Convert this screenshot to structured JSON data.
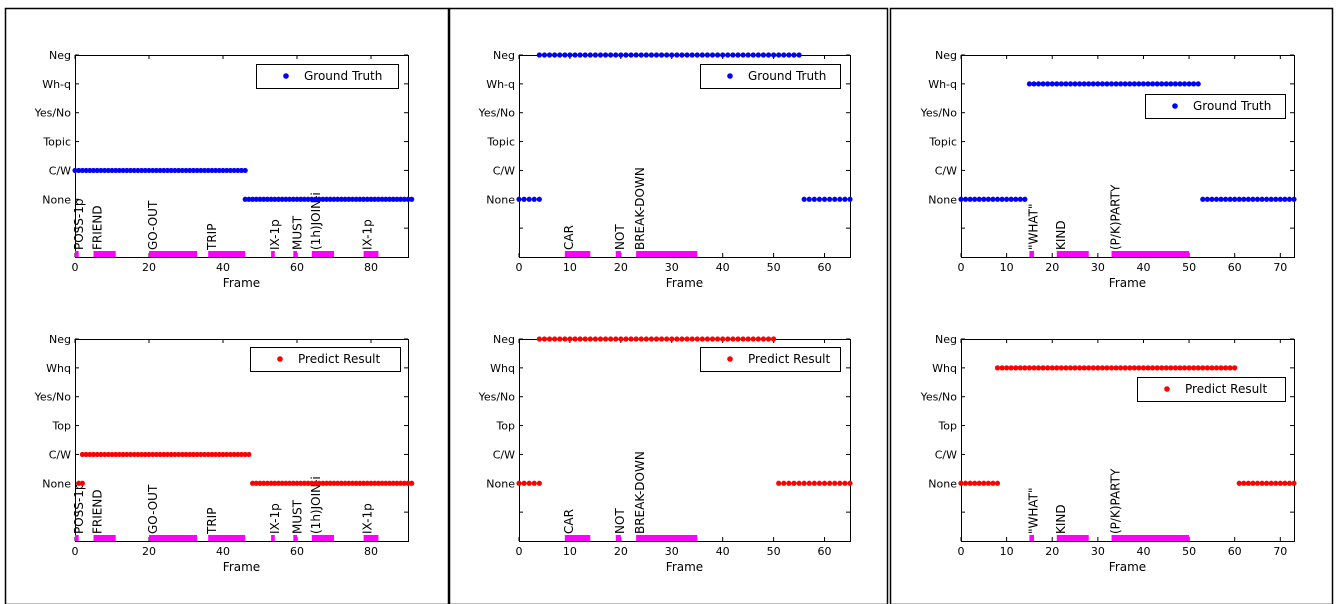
{
  "colors": {
    "gt": "#0000ff",
    "pred": "#ff0000",
    "gloss": "#ff00ff",
    "axis": "#000000"
  },
  "chart_data": [
    {
      "type": "scatter",
      "xlabel": "Frame",
      "xlim": [
        0,
        90
      ],
      "xticks": [
        0,
        20,
        40,
        60,
        80
      ],
      "categories": [
        "Neg",
        "Wh-q",
        "Yes/No",
        "Topic",
        "C/W",
        "None"
      ],
      "legend": "Ground Truth",
      "legend_pos": "top-right",
      "series": [
        {
          "name": "Ground Truth",
          "marker": "dot",
          "segments": [
            {
              "category": "C/W",
              "x": [
                0,
                46
              ]
            },
            {
              "category": "None",
              "x": [
                46,
                91
              ]
            }
          ]
        }
      ],
      "glosses": [
        {
          "label": "POSS-1p",
          "x": [
            0,
            1
          ]
        },
        {
          "label": "FRIEND",
          "x": [
            5,
            11
          ]
        },
        {
          "label": "GO-OUT",
          "x": [
            20,
            33
          ]
        },
        {
          "label": "TRIP",
          "x": [
            36,
            46
          ]
        },
        {
          "label": "IX-1p",
          "x": [
            53,
            54
          ]
        },
        {
          "label": "MUST",
          "x": [
            59,
            60
          ]
        },
        {
          "label": "(1h)JOIN-i",
          "x": [
            64,
            70
          ]
        },
        {
          "label": "IX-1p",
          "x": [
            78,
            82
          ]
        }
      ]
    },
    {
      "type": "scatter",
      "xlabel": "Frame",
      "xlim": [
        0,
        65
      ],
      "xticks": [
        0,
        10,
        20,
        30,
        40,
        50,
        60
      ],
      "categories": [
        "Neg",
        "Wh-q",
        "Yes/No",
        "Topic",
        "C/W",
        "None"
      ],
      "legend": "Ground Truth",
      "legend_pos": "top-right",
      "series": [
        {
          "name": "Ground Truth",
          "marker": "dot",
          "segments": [
            {
              "category": "None",
              "x": [
                0,
                4
              ]
            },
            {
              "category": "Neg",
              "x": [
                4,
                55
              ]
            },
            {
              "category": "None",
              "x": [
                56,
                65
              ]
            }
          ]
        }
      ],
      "glosses": [
        {
          "label": "CAR",
          "x": [
            9,
            14
          ]
        },
        {
          "label": "NOT",
          "x": [
            19,
            20
          ]
        },
        {
          "label": "BREAK-DOWN",
          "x": [
            23,
            35
          ]
        }
      ]
    },
    {
      "type": "scatter",
      "xlabel": "Frame",
      "xlim": [
        0,
        73
      ],
      "xticks": [
        0,
        10,
        20,
        30,
        40,
        50,
        60,
        70
      ],
      "categories": [
        "Neg",
        "Wh-q",
        "Yes/No",
        "Topic",
        "C/W",
        "None"
      ],
      "legend": "Ground Truth",
      "legend_pos": "top-right",
      "series": [
        {
          "name": "Ground Truth",
          "marker": "dot",
          "segments": [
            {
              "category": "None",
              "x": [
                0,
                14
              ]
            },
            {
              "category": "Wh-q",
              "x": [
                15,
                52
              ]
            },
            {
              "category": "None",
              "x": [
                53,
                73
              ]
            }
          ]
        }
      ],
      "glosses": [
        {
          "label": "\"WHAT\"",
          "x": [
            15,
            16
          ]
        },
        {
          "label": "KIND",
          "x": [
            21,
            28
          ]
        },
        {
          "label": "(P/K)PARTY",
          "x": [
            33,
            50
          ]
        }
      ]
    },
    {
      "type": "scatter",
      "xlabel": "Frame",
      "xlim": [
        0,
        90
      ],
      "xticks": [
        0,
        20,
        40,
        60,
        80
      ],
      "categories": [
        "Neg",
        "Whq",
        "Yes/No",
        "Top",
        "C/W",
        "None"
      ],
      "legend": "Predict Result",
      "legend_pos": "top-right",
      "series": [
        {
          "name": "Predict Result",
          "marker": "dot",
          "segments": [
            {
              "category": "None",
              "x": [
                1,
                2
              ]
            },
            {
              "category": "C/W",
              "x": [
                2,
                47
              ]
            },
            {
              "category": "None",
              "x": [
                48,
                91
              ]
            }
          ]
        }
      ],
      "glosses": [
        {
          "label": "POSS-1p",
          "x": [
            0,
            1
          ]
        },
        {
          "label": "FRIEND",
          "x": [
            5,
            11
          ]
        },
        {
          "label": "GO-OUT",
          "x": [
            20,
            33
          ]
        },
        {
          "label": "TRIP",
          "x": [
            36,
            46
          ]
        },
        {
          "label": "IX-1p",
          "x": [
            53,
            54
          ]
        },
        {
          "label": "MUST",
          "x": [
            59,
            60
          ]
        },
        {
          "label": "(1h)JOIN-i",
          "x": [
            64,
            70
          ]
        },
        {
          "label": "IX-1p",
          "x": [
            78,
            82
          ]
        }
      ]
    },
    {
      "type": "scatter",
      "xlabel": "Frame",
      "xlim": [
        0,
        65
      ],
      "xticks": [
        0,
        10,
        20,
        30,
        40,
        50,
        60
      ],
      "categories": [
        "Neg",
        "Whq",
        "Yes/No",
        "Top",
        "C/W",
        "None"
      ],
      "legend": "Predict Result",
      "legend_pos": "top-right",
      "series": [
        {
          "name": "Predict Result",
          "marker": "dot",
          "segments": [
            {
              "category": "None",
              "x": [
                0,
                4
              ]
            },
            {
              "category": "Neg",
              "x": [
                4,
                50
              ]
            },
            {
              "category": "None",
              "x": [
                51,
                65
              ]
            }
          ]
        }
      ],
      "glosses": [
        {
          "label": "CAR",
          "x": [
            9,
            14
          ]
        },
        {
          "label": "NOT",
          "x": [
            19,
            20
          ]
        },
        {
          "label": "BREAK-DOWN",
          "x": [
            23,
            35
          ]
        }
      ]
    },
    {
      "type": "scatter",
      "xlabel": "Frame",
      "xlim": [
        0,
        73
      ],
      "xticks": [
        0,
        10,
        20,
        30,
        40,
        50,
        60,
        70
      ],
      "categories": [
        "Neg",
        "Whq",
        "Yes/No",
        "Top",
        "C/W",
        "None"
      ],
      "legend": "Predict Result",
      "legend_pos": "top-right",
      "series": [
        {
          "name": "Predict Result",
          "marker": "dot",
          "segments": [
            {
              "category": "None",
              "x": [
                0,
                8
              ]
            },
            {
              "category": "Whq",
              "x": [
                8,
                60
              ]
            },
            {
              "category": "None",
              "x": [
                61,
                73
              ]
            }
          ]
        }
      ],
      "glosses": [
        {
          "label": "\"WHAT\"",
          "x": [
            15,
            16
          ]
        },
        {
          "label": "KIND",
          "x": [
            21,
            28
          ]
        },
        {
          "label": "(P/K)PARTY",
          "x": [
            33,
            50
          ]
        }
      ]
    }
  ]
}
